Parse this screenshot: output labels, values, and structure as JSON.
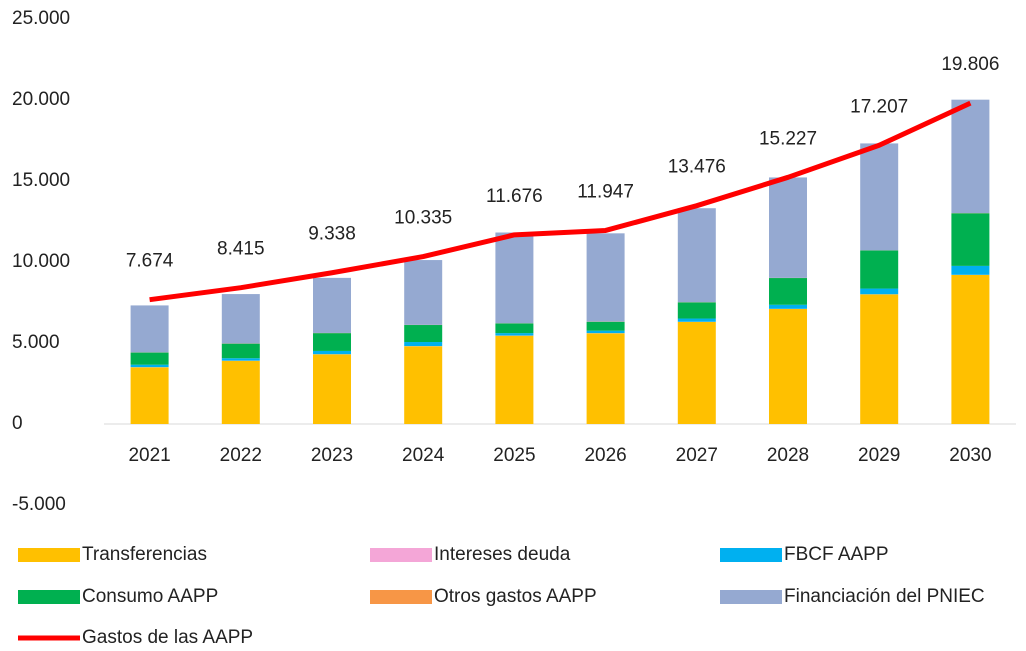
{
  "chart_data": {
    "type": "bar",
    "stacked": true,
    "categories": [
      "2021",
      "2022",
      "2023",
      "2024",
      "2025",
      "2026",
      "2027",
      "2028",
      "2029",
      "2030"
    ],
    "series": [
      {
        "name": "Transferencias",
        "color": "#ffc000",
        "values": [
          3500,
          3900,
          4300,
          4800,
          5450,
          5600,
          6300,
          7100,
          8000,
          9200
        ]
      },
      {
        "name": "Intereses deuda",
        "color": "#f4a6d7",
        "values": [
          10,
          10,
          10,
          10,
          10,
          10,
          10,
          10,
          10,
          10
        ]
      },
      {
        "name": "FBCF AAPP",
        "color": "#00b0f0",
        "values": [
          150,
          150,
          200,
          250,
          150,
          150,
          200,
          250,
          350,
          550
        ]
      },
      {
        "name": "Consumo AAPP",
        "color": "#00b050",
        "values": [
          750,
          900,
          1100,
          1050,
          600,
          550,
          1000,
          1650,
          2350,
          3250
        ]
      },
      {
        "name": "Otros gastos AAPP",
        "color": "#f79646",
        "values": [
          10,
          10,
          10,
          10,
          10,
          10,
          10,
          10,
          10,
          10
        ]
      },
      {
        "name": "Financiación del PNIEC",
        "color": "#95a9d1",
        "values": [
          2900,
          3050,
          3400,
          4000,
          5600,
          5450,
          5800,
          6200,
          6600,
          7000
        ]
      },
      {
        "name": "Gastos de las AAPP",
        "color": "#ff0000",
        "type": "line",
        "values": [
          7674,
          8415,
          9338,
          10335,
          11676,
          11947,
          13476,
          15227,
          17207,
          19806
        ],
        "value_labels": [
          "7.674",
          "8.415",
          "9.338",
          "10.335",
          "11.676",
          "11.947",
          "13.476",
          "15.227",
          "17.207",
          "19.806"
        ]
      }
    ],
    "ylim": [
      -5000,
      25000
    ],
    "yticks": [
      {
        "value": -5000,
        "label": "-5.000"
      },
      0,
      {
        "value": 5000,
        "label": "5.000"
      },
      {
        "value": 10000,
        "label": "10.000"
      },
      {
        "value": 15000,
        "label": "15.000"
      },
      {
        "value": 20000,
        "label": "20.000"
      },
      {
        "value": 25000,
        "label": "25.000"
      }
    ],
    "grid": false,
    "legend": "bottom"
  }
}
